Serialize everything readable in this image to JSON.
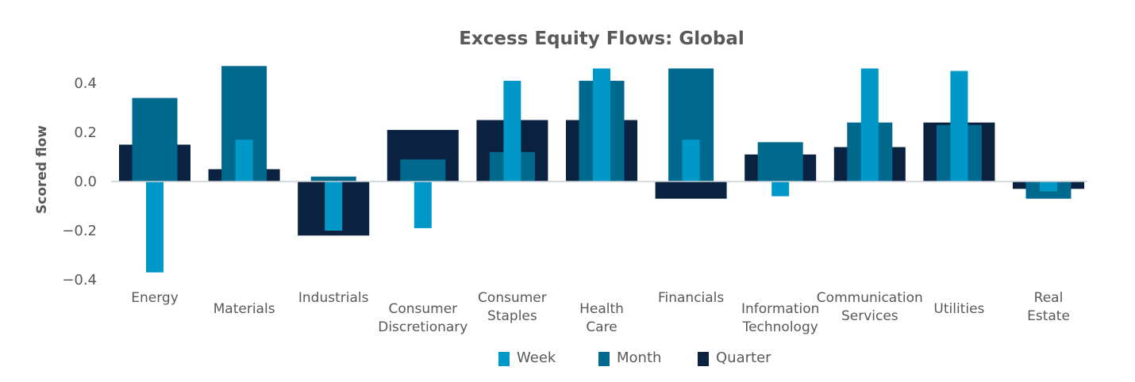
{
  "chart_data": {
    "type": "bar",
    "title": "Excess Equity Flows:  Global",
    "xlabel": "",
    "ylabel": "Scored flow",
    "ylim": [
      -0.4,
      0.5
    ],
    "yticks": [
      0.4,
      0.2,
      0.0,
      -0.2,
      -0.4
    ],
    "ytick_labels": [
      "0.4",
      "0.2",
      "0.0",
      "−0.2",
      "−0.4"
    ],
    "grid": false,
    "legend_position": "bottom-center",
    "categories": [
      [
        "Energy"
      ],
      [
        "Materials"
      ],
      [
        "Industrials"
      ],
      [
        "Consumer",
        "Discretionary"
      ],
      [
        "Consumer",
        "Staples"
      ],
      [
        "Health",
        "Care"
      ],
      [
        "Financials"
      ],
      [
        "Information",
        "Technology"
      ],
      [
        "Communication",
        "Services"
      ],
      [
        "Utilities"
      ],
      [
        "Real",
        "Estate"
      ]
    ],
    "series": [
      {
        "name": "Quarter",
        "color": "#0a2240",
        "values": [
          0.15,
          0.05,
          -0.22,
          0.21,
          0.25,
          0.25,
          -0.07,
          0.11,
          0.14,
          0.24,
          -0.03
        ]
      },
      {
        "name": "Month",
        "color": "#006a8e",
        "values": [
          0.34,
          0.47,
          0.02,
          0.09,
          0.12,
          0.41,
          0.46,
          0.16,
          0.24,
          0.23,
          -0.07
        ]
      },
      {
        "name": "Week",
        "color": "#0098c8",
        "values": [
          -0.37,
          0.17,
          -0.2,
          -0.19,
          0.41,
          0.46,
          0.17,
          -0.06,
          0.46,
          0.45,
          -0.04
        ]
      }
    ],
    "legend": [
      "Week",
      "Month",
      "Quarter"
    ],
    "legend_colors": [
      "#0098c8",
      "#006a8e",
      "#0a2240"
    ]
  }
}
